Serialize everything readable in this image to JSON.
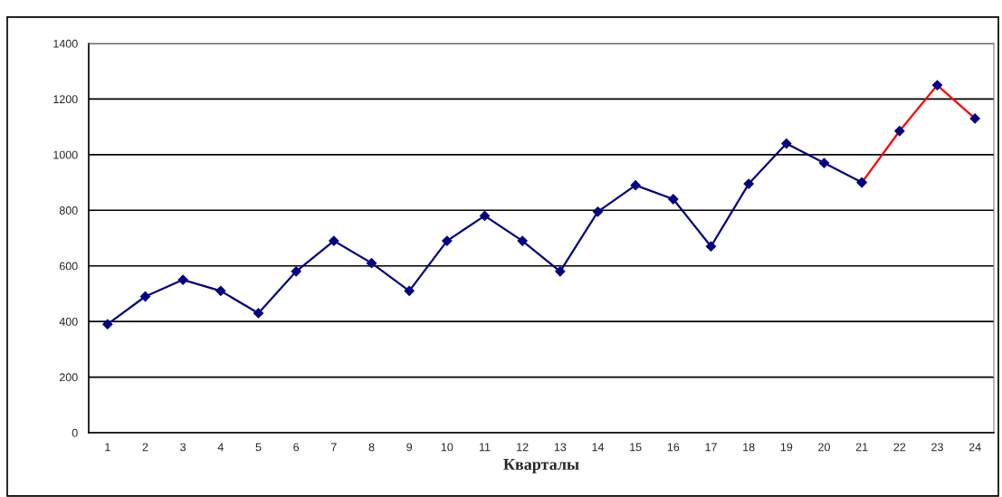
{
  "chart_data": {
    "type": "line",
    "xlabel": "Кварталы",
    "categories": [
      "1",
      "2",
      "3",
      "4",
      "5",
      "6",
      "7",
      "8",
      "9",
      "10",
      "11",
      "12",
      "13",
      "14",
      "15",
      "16",
      "17",
      "18",
      "19",
      "20",
      "21",
      "22",
      "23",
      "24"
    ],
    "series": [
      {
        "color": "#000080",
        "values": [
          390,
          490,
          550,
          510,
          430,
          580,
          690,
          610,
          510,
          690,
          780,
          690,
          580,
          795,
          890,
          840,
          670,
          895,
          1040,
          970,
          900,
          null,
          null,
          null
        ]
      },
      {
        "color": "#ff0000",
        "values": [
          null,
          null,
          null,
          null,
          null,
          null,
          null,
          null,
          null,
          null,
          null,
          null,
          null,
          null,
          null,
          null,
          null,
          null,
          null,
          null,
          900,
          1085,
          1250,
          1130
        ]
      }
    ],
    "ylim": [
      0,
      1400
    ],
    "yticks": [
      0,
      200,
      400,
      600,
      800,
      1000,
      1200,
      1400
    ],
    "grid": "y",
    "marker": "diamond",
    "line_style": "solid"
  }
}
